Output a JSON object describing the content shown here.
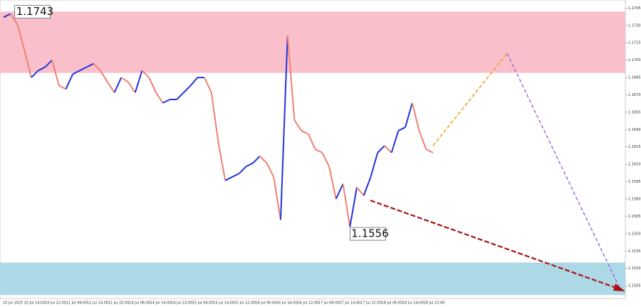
{
  "chart_data": {
    "type": "line",
    "values": [
      1.1737,
      1.174,
      1.1731,
      1.1709,
      1.1685,
      1.1691,
      1.1694,
      1.17,
      1.1678,
      1.1675,
      1.1688,
      1.1691,
      1.1694,
      1.1697,
      1.1691,
      1.1681,
      1.1672,
      1.1685,
      1.1681,
      1.1672,
      1.1691,
      1.1685,
      1.1672,
      1.1663,
      1.1666,
      1.1666,
      1.1672,
      1.1678,
      1.1685,
      1.1685,
      1.1672,
      1.1629,
      1.1596,
      1.1599,
      1.1602,
      1.1608,
      1.1611,
      1.1617,
      1.1611,
      1.1599,
      1.1562,
      1.1721,
      1.1648,
      1.1639,
      1.1636,
      1.1623,
      1.162,
      1.1608,
      1.158,
      1.1593,
      1.1556,
      1.159,
      1.1583,
      1.1599,
      1.162,
      1.1626,
      1.162,
      1.1639,
      1.1642,
      1.1663,
      1.1639,
      1.1623,
      1.162
    ],
    "up_color": "#2233dd",
    "down_color": "#f08070",
    "ylim": [
      1.1494,
      1.1752
    ],
    "yticks": [
      1.1505,
      {
        "value": 1.152,
        "label": "1.1520"
      },
      1.1535,
      {
        "value": 1.155,
        "label": "1.1550"
      },
      1.1565,
      {
        "value": 1.158,
        "label": "1.1580"
      },
      1.1595,
      {
        "value": 1.161,
        "label": "1.1610"
      },
      1.1625,
      {
        "value": 1.164,
        "label": "1.1640"
      },
      1.1655,
      {
        "value": 1.167,
        "label": "1.1670"
      },
      1.1685,
      {
        "value": 1.17,
        "label": "1.1700"
      },
      1.1715,
      {
        "value": 1.173,
        "label": "1.1730"
      },
      1.1745
    ],
    "zones": [
      {
        "from": 1.1689,
        "to": 1.1742,
        "color": "#f9c0cb"
      },
      {
        "from": 1.1497,
        "to": 1.1525,
        "color": "#add8e6"
      }
    ],
    "time_labels": [
      "10 Jul 2025",
      "10 Jul 14:00",
      "10 Jul 22:00",
      "11 Jul 06:00",
      "11 Jul 14:00",
      "11 Jul 22:00",
      "14 Jul 06:00",
      "14 Jul 14:00",
      "14 Jul 22:00",
      "15 Jul 06:00",
      "15 Jul 14:00",
      "15 Jul 22:00",
      "16 Jul 06:00",
      "16 Jul 14:00",
      "16 Jul 22:00",
      "17 Jul 06:00",
      "17 Jul 14:00",
      "17 Jul 22:00",
      "18 Jul 06:00",
      "18 Jul 14:00",
      "18 Jul 22:00"
    ],
    "annotations": [
      {
        "text": "1.1743",
        "value": 1.1743,
        "index": 1
      },
      {
        "text": "1.1556",
        "value": 1.1556,
        "index": 50
      }
    ]
  }
}
